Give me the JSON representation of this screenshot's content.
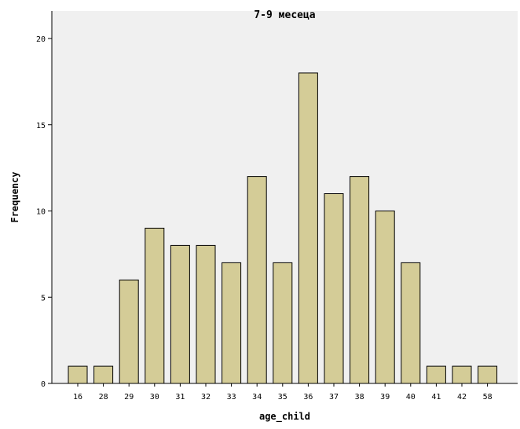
{
  "chart_data": {
    "type": "bar",
    "title": "7-9 месеца",
    "xlabel": "age_child",
    "ylabel": "Frequency",
    "categories": [
      "16",
      "28",
      "29",
      "30",
      "31",
      "32",
      "33",
      "34",
      "35",
      "36",
      "37",
      "38",
      "39",
      "40",
      "41",
      "42",
      "58"
    ],
    "values": [
      1,
      1,
      6,
      9,
      8,
      8,
      7,
      12,
      7,
      18,
      11,
      12,
      10,
      7,
      1,
      1,
      1
    ],
    "ylim": [
      0,
      20
    ],
    "yticks": [
      0,
      5,
      10,
      15,
      20
    ],
    "grid": false,
    "colors": {
      "bar_fill": "#d4cc97",
      "bar_stroke": "#000000",
      "plot_background": "#f0f0f0",
      "page_background": "#ffffff",
      "axis": "#000000"
    }
  }
}
